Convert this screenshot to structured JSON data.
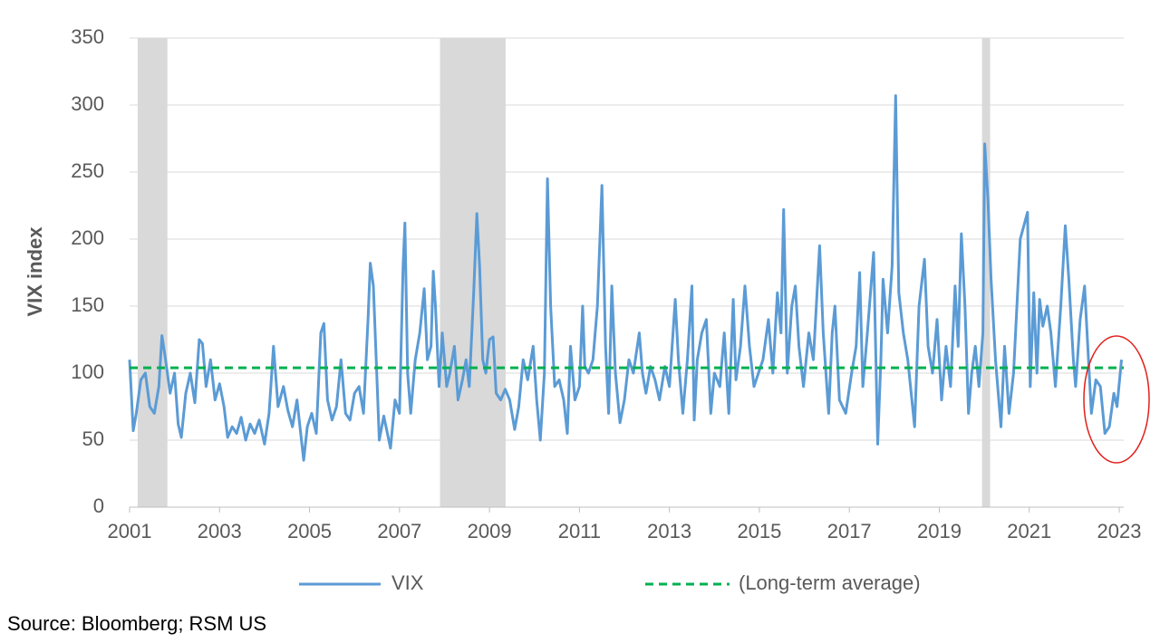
{
  "chart_data": {
    "type": "line",
    "y_label": "VIX index",
    "xlim": [
      2001,
      2023.1
    ],
    "xticks": [
      2001,
      2003,
      2005,
      2007,
      2009,
      2011,
      2013,
      2015,
      2017,
      2019,
      2021,
      2023
    ],
    "ylim": [
      0,
      350
    ],
    "yticks": [
      0,
      50,
      100,
      150,
      200,
      250,
      300,
      350
    ],
    "grid": true,
    "shaded_periods": [
      [
        2001.18,
        2001.84
      ],
      [
        2007.9,
        2009.36
      ],
      [
        2019.95,
        2020.13
      ]
    ],
    "x": [
      2001.0,
      2001.08,
      2001.15,
      2001.25,
      2001.35,
      2001.45,
      2001.55,
      2001.65,
      2001.72,
      2001.8,
      2001.9,
      2002.0,
      2002.08,
      2002.15,
      2002.25,
      2002.35,
      2002.45,
      2002.55,
      2002.62,
      2002.7,
      2002.8,
      2002.9,
      2003.0,
      2003.1,
      2003.18,
      2003.28,
      2003.38,
      2003.48,
      2003.58,
      2003.68,
      2003.78,
      2003.88,
      2004.0,
      2004.1,
      2004.2,
      2004.3,
      2004.42,
      2004.52,
      2004.62,
      2004.72,
      2004.87,
      2004.95,
      2005.05,
      2005.15,
      2005.25,
      2005.32,
      2005.4,
      2005.5,
      2005.6,
      2005.7,
      2005.8,
      2005.9,
      2006.0,
      2006.1,
      2006.2,
      2006.3,
      2006.35,
      2006.42,
      2006.5,
      2006.55,
      2006.65,
      2006.8,
      2006.9,
      2007.0,
      2007.08,
      2007.12,
      2007.18,
      2007.25,
      2007.35,
      2007.45,
      2007.55,
      2007.62,
      2007.7,
      2007.75,
      2007.8,
      2007.88,
      2007.95,
      2008.05,
      2008.12,
      2008.22,
      2008.3,
      2008.4,
      2008.48,
      2008.55,
      2008.65,
      2008.72,
      2008.78,
      2008.85,
      2008.92,
      2009.0,
      2009.08,
      2009.15,
      2009.25,
      2009.35,
      2009.45,
      2009.56,
      2009.65,
      2009.75,
      2009.85,
      2009.97,
      2010.05,
      2010.13,
      2010.22,
      2010.29,
      2010.36,
      2010.45,
      2010.55,
      2010.65,
      2010.73,
      2010.8,
      2010.9,
      2011.0,
      2011.07,
      2011.12,
      2011.2,
      2011.3,
      2011.4,
      2011.5,
      2011.58,
      2011.65,
      2011.72,
      2011.8,
      2011.9,
      2012.0,
      2012.1,
      2012.2,
      2012.33,
      2012.4,
      2012.48,
      2012.58,
      2012.68,
      2012.78,
      2012.9,
      2013.0,
      2013.13,
      2013.2,
      2013.3,
      2013.4,
      2013.5,
      2013.55,
      2013.62,
      2013.72,
      2013.82,
      2013.92,
      2014.0,
      2014.12,
      2014.22,
      2014.32,
      2014.42,
      2014.48,
      2014.58,
      2014.68,
      2014.78,
      2014.88,
      2014.98,
      2015.08,
      2015.2,
      2015.3,
      2015.4,
      2015.48,
      2015.54,
      2015.62,
      2015.72,
      2015.8,
      2015.88,
      2015.98,
      2016.1,
      2016.2,
      2016.34,
      2016.42,
      2016.54,
      2016.62,
      2016.68,
      2016.78,
      2016.92,
      2017.05,
      2017.15,
      2017.23,
      2017.3,
      2017.4,
      2017.54,
      2017.63,
      2017.7,
      2017.75,
      2017.85,
      2017.95,
      2018.03,
      2018.1,
      2018.2,
      2018.3,
      2018.45,
      2018.55,
      2018.67,
      2018.75,
      2018.85,
      2018.95,
      2019.05,
      2019.15,
      2019.25,
      2019.35,
      2019.42,
      2019.49,
      2019.57,
      2019.65,
      2019.72,
      2019.8,
      2019.88,
      2019.97,
      2020.01,
      2020.08,
      2020.15,
      2020.25,
      2020.37,
      2020.45,
      2020.55,
      2020.65,
      2020.8,
      2020.96,
      2021.02,
      2021.1,
      2021.17,
      2021.23,
      2021.3,
      2021.4,
      2021.48,
      2021.58,
      2021.7,
      2021.8,
      2021.88,
      2021.98,
      2022.03,
      2022.13,
      2022.23,
      2022.3,
      2022.38,
      2022.48,
      2022.58,
      2022.68,
      2022.78,
      2022.88,
      2022.95,
      2023.05
    ],
    "series": [
      {
        "name": "VIX",
        "color": "#5b9bd5",
        "values": [
          110,
          57,
          70,
          95,
          100,
          75,
          70,
          90,
          128,
          110,
          85,
          100,
          62,
          52,
          85,
          100,
          78,
          125,
          122,
          90,
          110,
          80,
          92,
          75,
          52,
          60,
          55,
          67,
          50,
          62,
          55,
          65,
          47,
          70,
          120,
          75,
          90,
          72,
          60,
          80,
          35,
          60,
          70,
          55,
          130,
          137,
          80,
          65,
          75,
          110,
          70,
          65,
          85,
          90,
          70,
          140,
          182,
          165,
          95,
          50,
          68,
          44,
          80,
          70,
          180,
          212,
          100,
          70,
          110,
          130,
          163,
          110,
          120,
          176,
          150,
          90,
          130,
          90,
          100,
          120,
          80,
          95,
          110,
          90,
          160,
          219,
          180,
          110,
          100,
          125,
          127,
          85,
          80,
          88,
          80,
          58,
          75,
          110,
          95,
          120,
          80,
          50,
          100,
          245,
          150,
          90,
          95,
          80,
          55,
          120,
          80,
          90,
          150,
          105,
          100,
          110,
          150,
          240,
          120,
          70,
          165,
          100,
          63,
          80,
          110,
          100,
          130,
          100,
          85,
          105,
          95,
          80,
          105,
          90,
          155,
          110,
          70,
          110,
          165,
          65,
          110,
          130,
          140,
          70,
          100,
          90,
          130,
          70,
          155,
          95,
          120,
          165,
          120,
          90,
          100,
          110,
          140,
          100,
          160,
          130,
          222,
          100,
          150,
          165,
          120,
          90,
          130,
          110,
          195,
          130,
          70,
          130,
          150,
          80,
          70,
          100,
          120,
          175,
          90,
          130,
          190,
          47,
          110,
          170,
          130,
          180,
          307,
          160,
          130,
          110,
          60,
          150,
          185,
          120,
          100,
          140,
          80,
          120,
          90,
          165,
          120,
          204,
          150,
          70,
          100,
          120,
          90,
          130,
          271,
          230,
          170,
          110,
          60,
          120,
          70,
          100,
          200,
          220,
          90,
          160,
          100,
          155,
          135,
          150,
          130,
          90,
          150,
          210,
          170,
          110,
          90,
          140,
          165,
          120,
          70,
          95,
          90,
          55,
          60,
          85,
          75,
          110
        ]
      }
    ],
    "reference_lines": [
      {
        "name": "(Long-term average)",
        "value": 104,
        "color": "#00b050"
      }
    ]
  },
  "source": "Source: Bloomberg; RSM US"
}
